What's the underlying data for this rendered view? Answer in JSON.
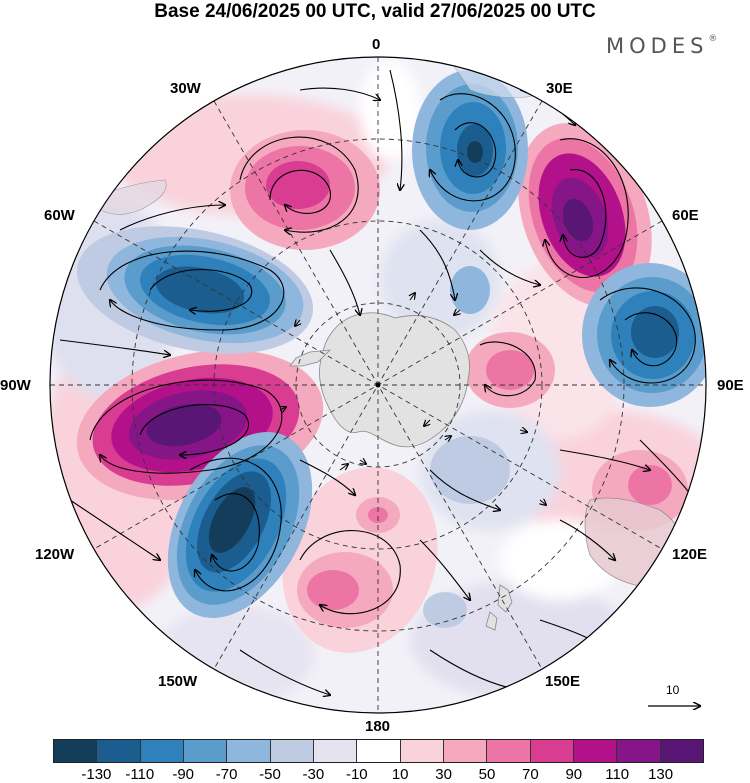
{
  "title": "Base 24/06/2025 00 UTC, valid 27/06/2025 00 UTC",
  "brand": "MODES",
  "brand_mark": "®",
  "longitude_labels": {
    "lon_0": "0",
    "lon_30e": "30E",
    "lon_60e": "60E",
    "lon_90e": "90E",
    "lon_120e": "120E",
    "lon_150e": "150E",
    "lon_180": "180",
    "lon_150w": "150W",
    "lon_120w": "120W",
    "lon_90w": "90W",
    "lon_60w": "60W",
    "lon_30w": "30W"
  },
  "reference_vector": "10",
  "colorbar": {
    "colors": [
      "#143d5c",
      "#1a5d8e",
      "#2f81bb",
      "#5a9ccc",
      "#8fb6dc",
      "#bfcbe3",
      "#e5e3f0",
      "#ffffff",
      "#f9d2dc",
      "#f5a9bf",
      "#ec75a6",
      "#d83d92",
      "#b3118a",
      "#861587",
      "#5a1674"
    ],
    "tick_labels": [
      "-130",
      "-110",
      "-90",
      "-70",
      "-50",
      "-30",
      "-10",
      "10",
      "30",
      "50",
      "70",
      "90",
      "110",
      "130"
    ]
  },
  "anomaly_centers": [
    {
      "name": "positive-center-atlantic-30w",
      "sign": "positive",
      "magnitude": 90
    },
    {
      "name": "negative-center-0-30e",
      "sign": "negative",
      "magnitude": 110
    },
    {
      "name": "positive-center-60e",
      "sign": "positive",
      "magnitude": 130
    },
    {
      "name": "negative-center-80e",
      "sign": "negative",
      "magnitude": 110
    },
    {
      "name": "positive-center-60e-inner",
      "sign": "positive",
      "magnitude": 50
    },
    {
      "name": "negative-center-60w",
      "sign": "negative",
      "magnitude": 110
    },
    {
      "name": "positive-center-100w",
      "sign": "positive",
      "magnitude": 130
    },
    {
      "name": "negative-center-130w",
      "sign": "negative",
      "magnitude": 130
    },
    {
      "name": "positive-center-170w",
      "sign": "positive",
      "magnitude": 70
    },
    {
      "name": "positive-center-120e",
      "sign": "positive",
      "magnitude": 70
    }
  ]
}
